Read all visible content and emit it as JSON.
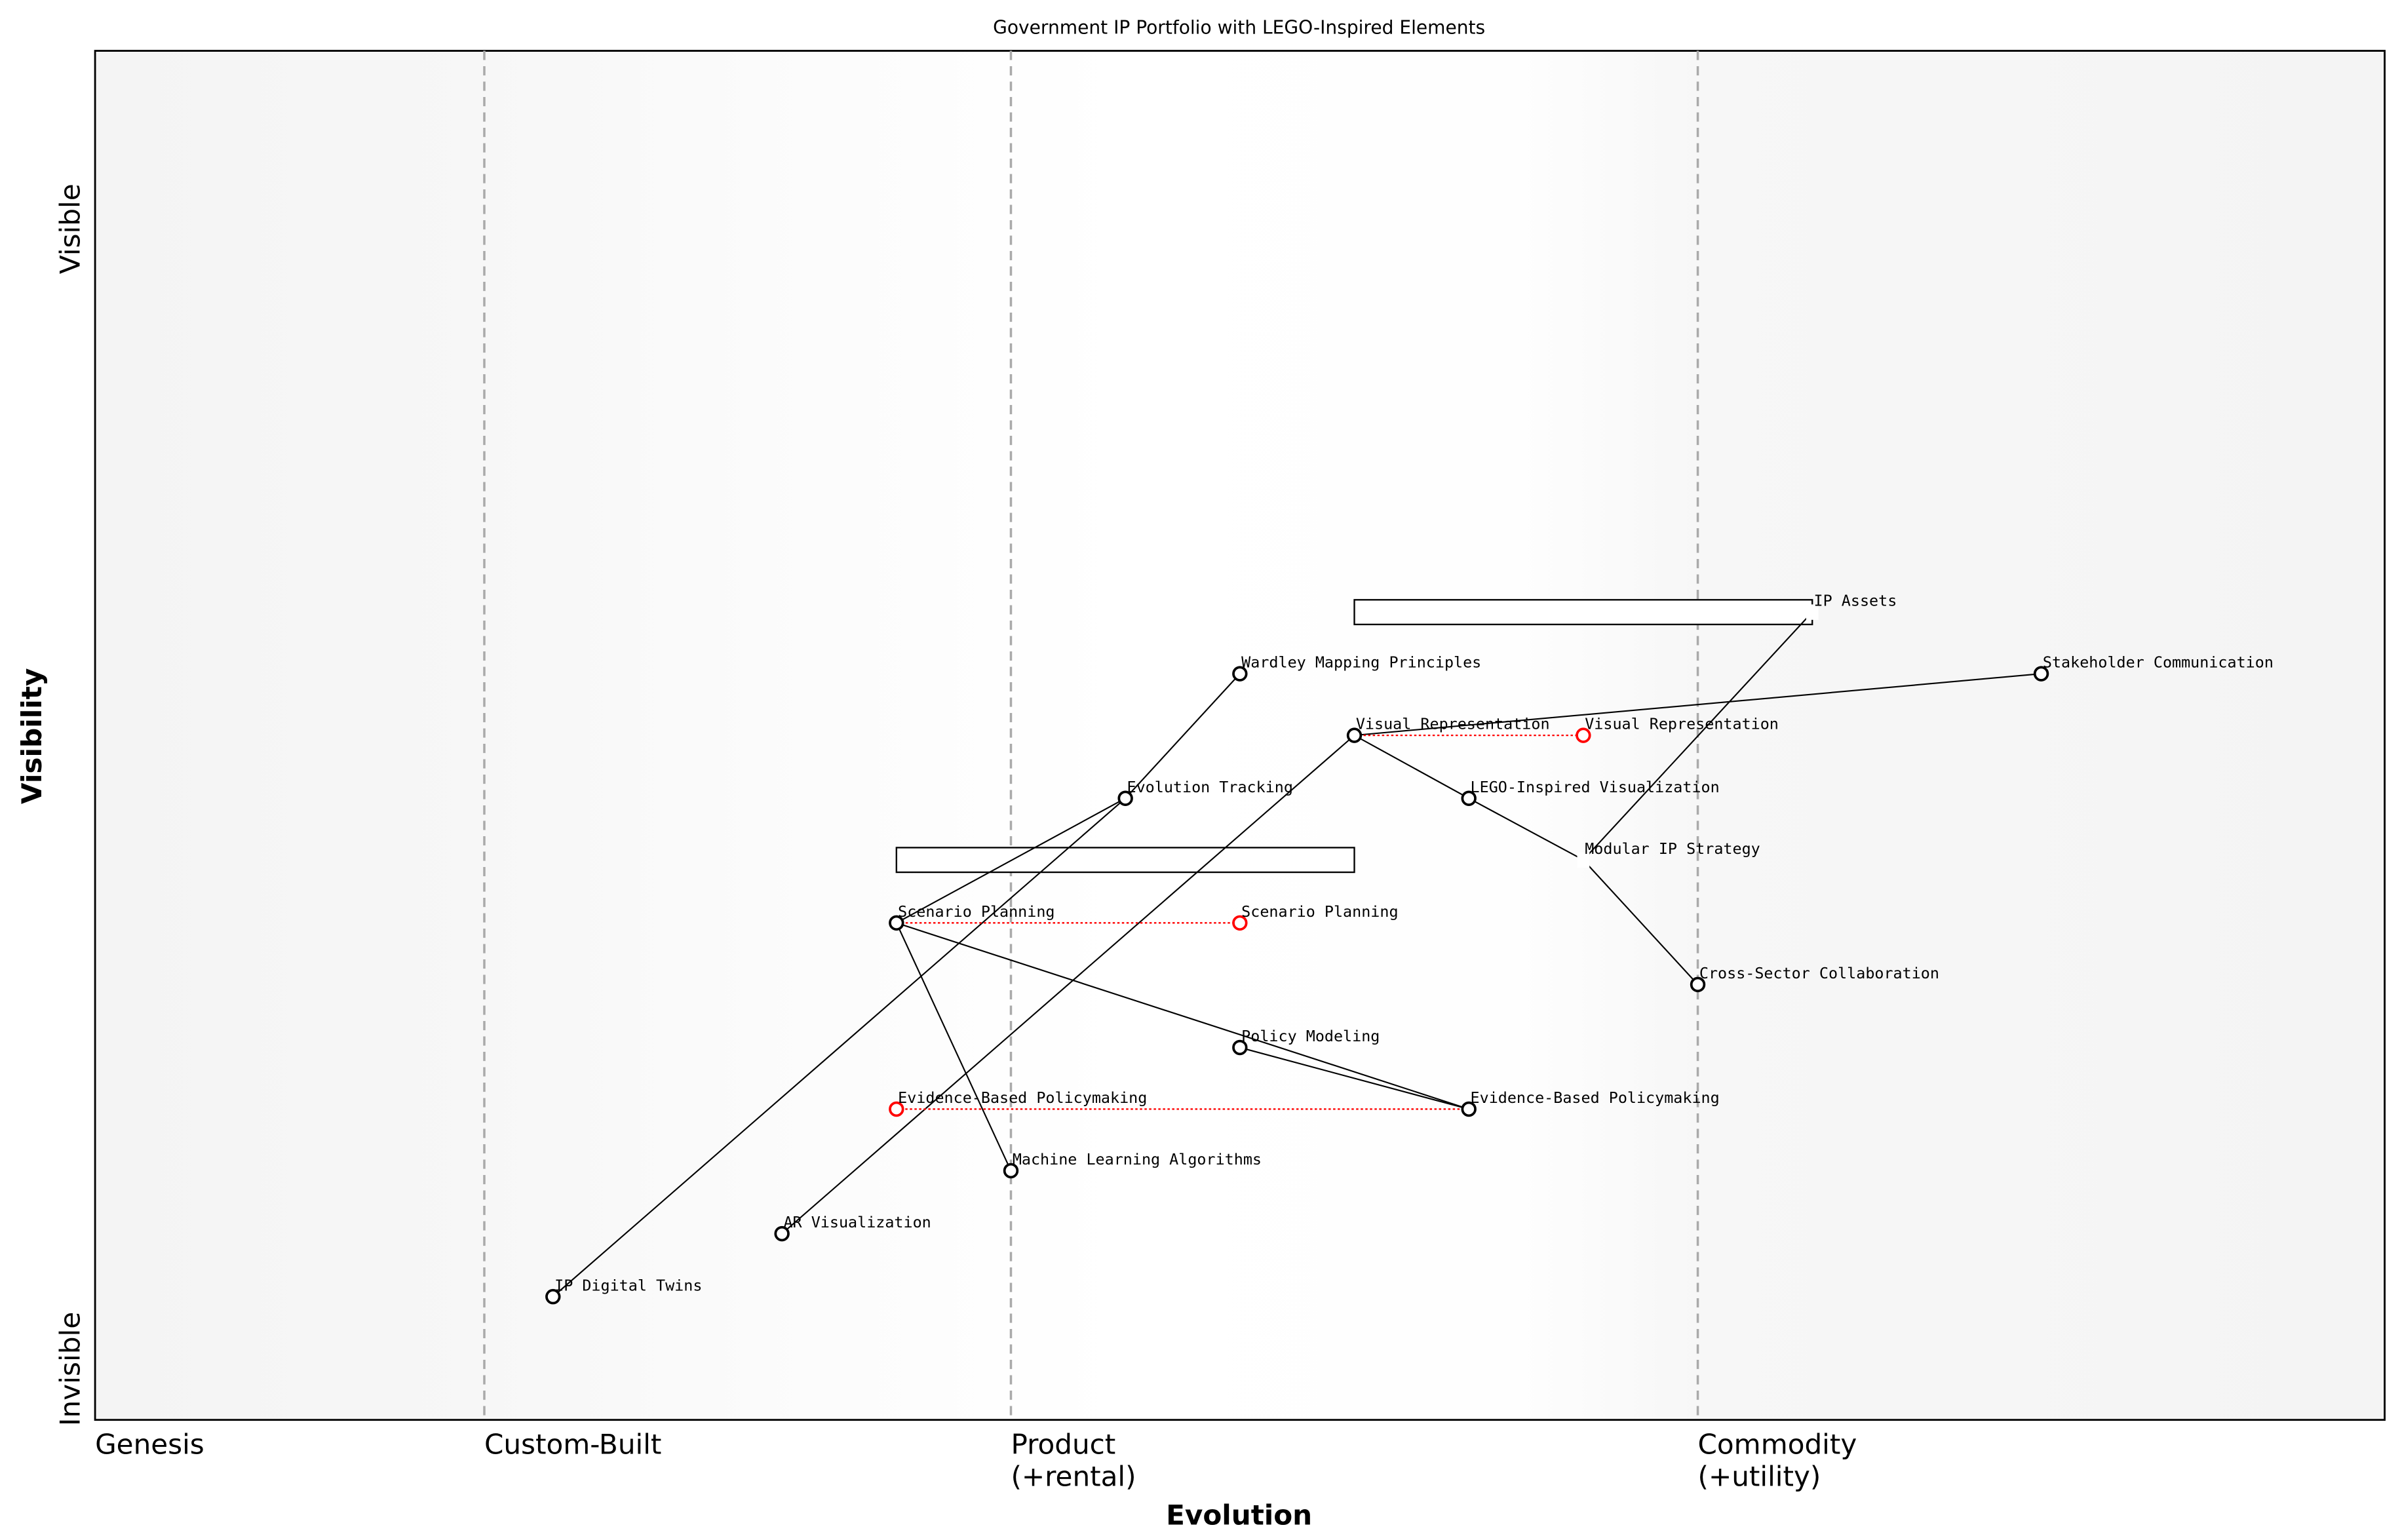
{
  "title": "Government IP Portfolio with LEGO-Inspired Elements",
  "axes": {
    "xlabel": "Evolution",
    "ylabel": "Visibility",
    "y_top": "Visible",
    "y_bottom": "Invisible",
    "stages": [
      {
        "label": "Genesis",
        "line2": "",
        "x": 0.0
      },
      {
        "label": "Custom-Built",
        "line2": "",
        "x": 0.17
      },
      {
        "label": "Product",
        "line2": "(+rental)",
        "x": 0.4
      },
      {
        "label": "Commodity",
        "line2": "(+utility)",
        "x": 0.7
      }
    ]
  },
  "components": [
    {
      "name": "IP Digital Twins"
    },
    {
      "name": "AR Visualization"
    },
    {
      "name": "Machine Learning Algorithms"
    },
    {
      "name": "Evidence-Based Policymaking"
    },
    {
      "name": "Policy Modeling"
    },
    {
      "name": "Cross-Sector Collaboration"
    },
    {
      "name": "Scenario Planning"
    },
    {
      "name": "Modular IP Strategy",
      "marker": "none"
    },
    {
      "name": "Evolution Tracking"
    },
    {
      "name": "LEGO-Inspired Visualization"
    },
    {
      "name": "Visual Representation"
    },
    {
      "name": "Wardley Mapping Principles"
    },
    {
      "name": "Stakeholder Communication"
    },
    {
      "name": "IP Assets",
      "marker": "none"
    }
  ],
  "evolutions": [
    {
      "name": "Visual Representation",
      "from": 0.55,
      "to": 0.65,
      "y": 0.5
    },
    {
      "name": "Scenario Planning",
      "from": 0.35,
      "to": 0.5,
      "y": 0.363
    },
    {
      "name": "Evidence-Based Policymaking",
      "from": 0.6,
      "to": 0.35,
      "y": 0.227
    }
  ],
  "links": [
    [
      "Visual Representation",
      "Stakeholder Communication"
    ],
    [
      "Visual Representation",
      "LEGO-Inspired Visualization"
    ],
    [
      "LEGO-Inspired Visualization",
      "Modular IP Strategy"
    ],
    [
      "Modular IP Strategy",
      "Cross-Sector Collaboration"
    ],
    [
      "Modular IP Strategy",
      "IP Assets"
    ],
    [
      "Visual Representation",
      "AR Visualization"
    ],
    [
      "Evolution Tracking",
      "IP Digital Twins"
    ],
    [
      "Evolution Tracking",
      "Wardley Mapping Principles"
    ],
    [
      "Scenario Planning",
      "Evolution Tracking"
    ],
    [
      "Scenario Planning",
      "Machine Learning Algorithms"
    ],
    [
      "Scenario Planning",
      "Evidence-Based Policymaking"
    ],
    [
      "Policy Modeling",
      "Evidence-Based Policymaking"
    ]
  ],
  "pipelines": [
    {
      "x_start": 0.55,
      "x_end": 0.75,
      "y": 0.59
    },
    {
      "x_start": 0.35,
      "x_end": 0.55,
      "y": 0.409
    }
  ],
  "colors": {
    "evolve": "#ff0000",
    "node": "#000000",
    "grid": "#aaaaaa"
  }
}
